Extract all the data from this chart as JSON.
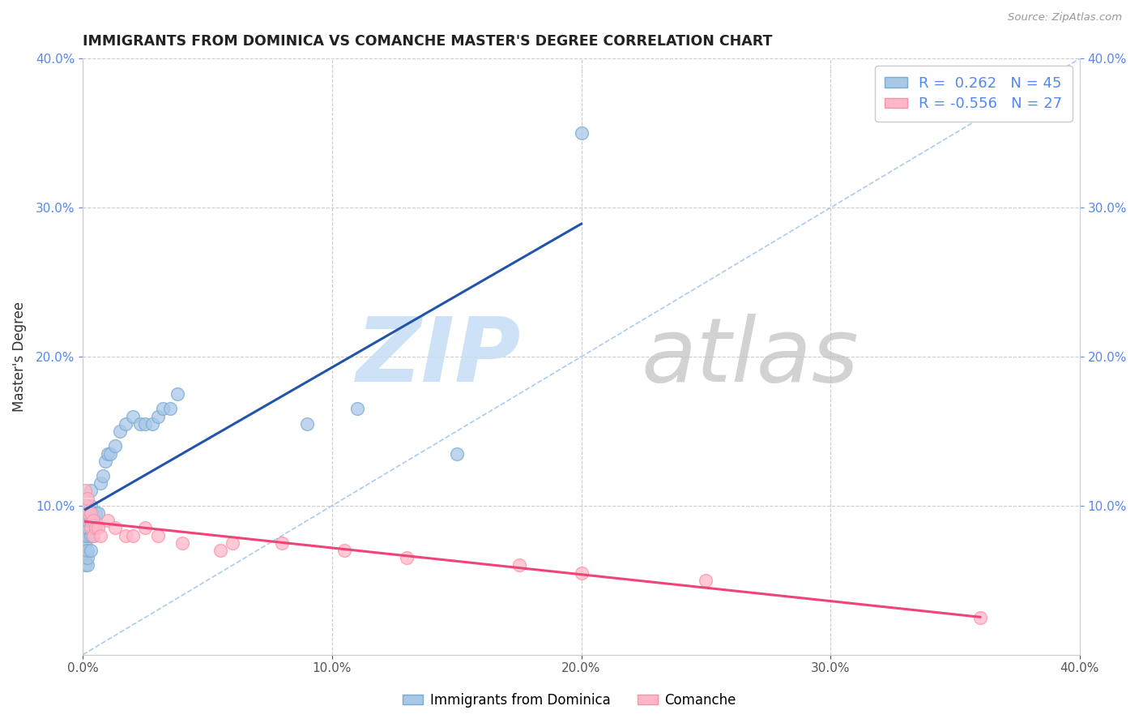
{
  "title": "IMMIGRANTS FROM DOMINICA VS COMANCHE MASTER'S DEGREE CORRELATION CHART",
  "source": "Source: ZipAtlas.com",
  "ylabel_left": "Master's Degree",
  "xmin": 0.0,
  "xmax": 0.4,
  "ymin": 0.0,
  "ymax": 0.4,
  "xtick_vals": [
    0.0,
    0.1,
    0.2,
    0.3,
    0.4
  ],
  "ytick_vals": [
    0.1,
    0.2,
    0.3,
    0.4
  ],
  "legend_label1": "Immigrants from Dominica",
  "legend_label2": "Comanche",
  "r1": 0.262,
  "n1": 45,
  "r2": -0.556,
  "n2": 27,
  "blue_scatter_color": "#A8C8E8",
  "blue_edge_color": "#7AAAD0",
  "pink_scatter_color": "#FFB8C8",
  "pink_edge_color": "#FF8FA8",
  "blue_line_color": "#2255AA",
  "pink_line_color": "#EE4477",
  "ref_line_color": "#AACCEE",
  "blue_scatter_x": [
    0.001,
    0.001,
    0.001,
    0.001,
    0.001,
    0.001,
    0.001,
    0.001,
    0.002,
    0.002,
    0.002,
    0.002,
    0.002,
    0.002,
    0.002,
    0.003,
    0.003,
    0.003,
    0.003,
    0.003,
    0.004,
    0.004,
    0.005,
    0.005,
    0.006,
    0.007,
    0.008,
    0.009,
    0.01,
    0.011,
    0.013,
    0.015,
    0.017,
    0.02,
    0.023,
    0.025,
    0.028,
    0.03,
    0.032,
    0.035,
    0.038,
    0.09,
    0.11,
    0.15,
    0.2
  ],
  "blue_scatter_y": [
    0.06,
    0.065,
    0.07,
    0.075,
    0.08,
    0.085,
    0.09,
    0.095,
    0.06,
    0.065,
    0.07,
    0.08,
    0.085,
    0.09,
    0.1,
    0.07,
    0.08,
    0.09,
    0.1,
    0.11,
    0.08,
    0.09,
    0.085,
    0.095,
    0.095,
    0.115,
    0.12,
    0.13,
    0.135,
    0.135,
    0.14,
    0.15,
    0.155,
    0.16,
    0.155,
    0.155,
    0.155,
    0.16,
    0.165,
    0.165,
    0.175,
    0.155,
    0.165,
    0.135,
    0.35
  ],
  "pink_scatter_x": [
    0.001,
    0.001,
    0.002,
    0.002,
    0.003,
    0.003,
    0.004,
    0.004,
    0.005,
    0.006,
    0.007,
    0.01,
    0.013,
    0.017,
    0.02,
    0.025,
    0.03,
    0.04,
    0.055,
    0.06,
    0.08,
    0.105,
    0.13,
    0.175,
    0.2,
    0.25,
    0.36
  ],
  "pink_scatter_y": [
    0.1,
    0.11,
    0.095,
    0.105,
    0.085,
    0.095,
    0.08,
    0.09,
    0.085,
    0.085,
    0.08,
    0.09,
    0.085,
    0.08,
    0.08,
    0.085,
    0.08,
    0.075,
    0.07,
    0.075,
    0.075,
    0.07,
    0.065,
    0.06,
    0.055,
    0.05,
    0.025
  ]
}
